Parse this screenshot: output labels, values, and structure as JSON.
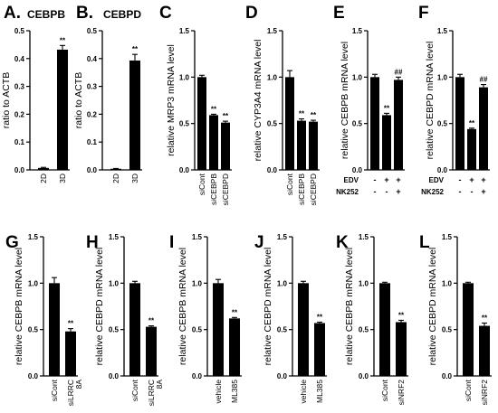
{
  "chart_data": [
    {
      "letter": "A.",
      "title": "CEBPB",
      "type": "bar",
      "ylabel": "ratio to ACTB",
      "ylim": [
        0,
        0.5
      ],
      "yticks": [
        0.0,
        0.1,
        0.2,
        0.3,
        0.4,
        0.5
      ],
      "categories": [
        "2D",
        "3D"
      ],
      "values": [
        0.007,
        0.432
      ],
      "errors": [
        0.002,
        0.015
      ],
      "marks": [
        "",
        "**"
      ]
    },
    {
      "letter": "B.",
      "title": "CEBPD",
      "type": "bar",
      "ylabel": "ratio to ACTB",
      "ylim": [
        0,
        0.5
      ],
      "yticks": [
        0.0,
        0.1,
        0.2,
        0.3,
        0.4,
        0.5
      ],
      "categories": [
        "2D",
        "3D"
      ],
      "values": [
        0.004,
        0.393
      ],
      "errors": [
        0.001,
        0.022
      ],
      "marks": [
        "",
        "**"
      ]
    },
    {
      "letter": "C",
      "title": "",
      "type": "bar",
      "ylabel": "relative MRP3 mRNA level",
      "ylim": [
        0,
        1.5
      ],
      "yticks": [
        0.0,
        0.5,
        1.0,
        1.5
      ],
      "categories": [
        "siCont",
        "siCEBPB",
        "siCEBPD"
      ],
      "values": [
        1.0,
        0.59,
        0.51
      ],
      "errors": [
        0.02,
        0.01,
        0.015
      ],
      "marks": [
        "",
        "**",
        "**"
      ]
    },
    {
      "letter": "D",
      "title": "",
      "type": "bar",
      "ylabel": "relative CYP3A4 mRNA level",
      "ylim": [
        0,
        1.5
      ],
      "yticks": [
        0.0,
        0.5,
        1.0,
        1.5
      ],
      "categories": [
        "siCont",
        "siCEBPB",
        "siCEBPD"
      ],
      "values": [
        1.0,
        0.53,
        0.52
      ],
      "errors": [
        0.07,
        0.02,
        0.015
      ],
      "marks": [
        "",
        "**",
        "**"
      ]
    },
    {
      "letter": "E",
      "title": "",
      "type": "bar",
      "ylabel": "relative CEBPB mRNA level",
      "ylim": [
        0,
        1.5
      ],
      "yticks": [
        0.0,
        0.5,
        1.0,
        1.5
      ],
      "categories": [
        "",
        "",
        ""
      ],
      "values": [
        1.0,
        0.59,
        0.97
      ],
      "errors": [
        0.03,
        0.02,
        0.03
      ],
      "marks": [
        "",
        "**",
        "##"
      ],
      "treatments": [
        {
          "name": "EDV",
          "signs": [
            "-",
            "+",
            "+"
          ]
        },
        {
          "name": "NK252",
          "signs": [
            "-",
            "-",
            "+"
          ]
        }
      ]
    },
    {
      "letter": "F",
      "title": "",
      "type": "bar",
      "ylabel": "relative CEBPD mRNA level",
      "ylim": [
        0,
        1.5
      ],
      "yticks": [
        0.0,
        0.5,
        1.0,
        1.5
      ],
      "categories": [
        "",
        "",
        ""
      ],
      "values": [
        1.0,
        0.44,
        0.89
      ],
      "errors": [
        0.03,
        0.01,
        0.03
      ],
      "marks": [
        "",
        "**",
        "##"
      ],
      "treatments": [
        {
          "name": "EDV",
          "signs": [
            "-",
            "+",
            "+"
          ]
        },
        {
          "name": "NK252",
          "signs": [
            "-",
            "-",
            "+"
          ]
        }
      ]
    },
    {
      "letter": "G",
      "title": "",
      "type": "bar",
      "ylabel": "relative CEBPB mRNA level",
      "ylim": [
        0,
        1.5
      ],
      "yticks": [
        0.0,
        0.5,
        1.0,
        1.5
      ],
      "categories": [
        "siCont",
        "siLRRC 8A"
      ],
      "values": [
        1.0,
        0.48
      ],
      "errors": [
        0.06,
        0.03
      ],
      "marks": [
        "",
        "**"
      ]
    },
    {
      "letter": "H",
      "title": "",
      "type": "bar",
      "ylabel": "relative CEBPD mRNA level",
      "ylim": [
        0,
        1.5
      ],
      "yticks": [
        0.0,
        0.5,
        1.0,
        1.5
      ],
      "categories": [
        "siCont",
        "siLRRC 8A"
      ],
      "values": [
        1.0,
        0.53
      ],
      "errors": [
        0.02,
        0.01
      ],
      "marks": [
        "",
        "**"
      ]
    },
    {
      "letter": "I",
      "title": "",
      "type": "bar",
      "ylabel": "relative CEBPB mRNA level",
      "ylim": [
        0,
        1.5
      ],
      "yticks": [
        0.0,
        0.5,
        1.0,
        1.5
      ],
      "categories": [
        "vehicle",
        "ML385"
      ],
      "values": [
        1.0,
        0.62
      ],
      "errors": [
        0.04,
        0.01
      ],
      "marks": [
        "",
        "**"
      ]
    },
    {
      "letter": "J",
      "title": "",
      "type": "bar",
      "ylabel": "relative CEBPD mRNA level",
      "ylim": [
        0,
        1.5
      ],
      "yticks": [
        0.0,
        0.5,
        1.0,
        1.5
      ],
      "categories": [
        "vehicle",
        "ML385"
      ],
      "values": [
        1.0,
        0.57
      ],
      "errors": [
        0.02,
        0.01
      ],
      "marks": [
        "",
        "**"
      ]
    },
    {
      "letter": "K",
      "title": "",
      "type": "bar",
      "ylabel": "relative CEBPB mRNA level",
      "ylim": [
        0,
        1.5
      ],
      "yticks": [
        0.0,
        0.5,
        1.0,
        1.5
      ],
      "categories": [
        "siCont",
        "siNRF2"
      ],
      "values": [
        1.0,
        0.58
      ],
      "errors": [
        0.01,
        0.02
      ],
      "marks": [
        "",
        "**"
      ]
    },
    {
      "letter": "L",
      "title": "",
      "type": "bar",
      "ylabel": "relative CEBPD mRNA level",
      "ylim": [
        0,
        1.5
      ],
      "yticks": [
        0.0,
        0.5,
        1.0,
        1.5
      ],
      "categories": [
        "siCont",
        "siNRF2"
      ],
      "values": [
        1.0,
        0.54
      ],
      "errors": [
        0.01,
        0.03
      ],
      "marks": [
        "",
        "**"
      ]
    }
  ]
}
